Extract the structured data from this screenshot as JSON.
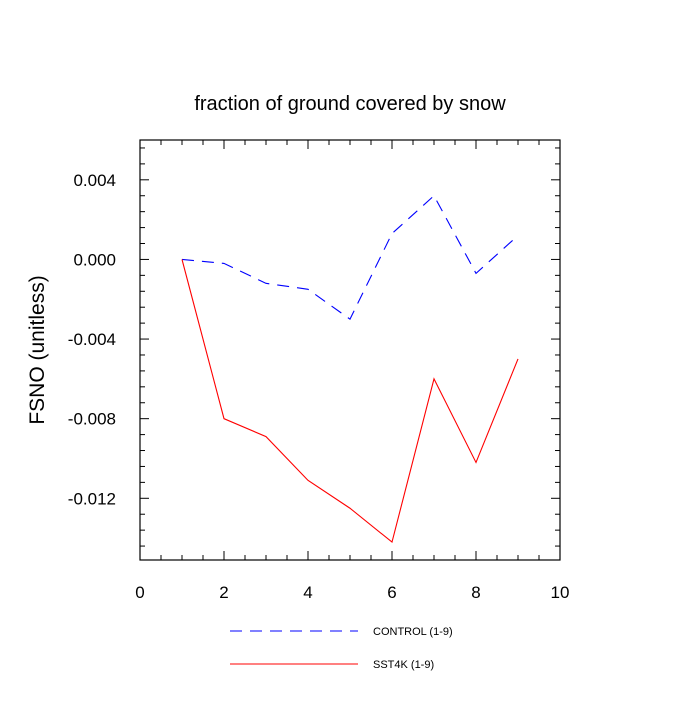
{
  "chart_data": {
    "type": "line",
    "title": "fraction of ground covered by snow",
    "xlabel": "",
    "ylabel": "FSNO  (unitless)",
    "xlim": [
      0,
      10
    ],
    "ylim": [
      -0.0151,
      0.006
    ],
    "x_ticks": [
      0,
      2,
      4,
      6,
      8,
      10
    ],
    "x_tick_labels": [
      "0",
      "2",
      "4",
      "6",
      "8",
      "10"
    ],
    "y_ticks": [
      0.004,
      0.0,
      -0.004,
      -0.008,
      -0.012
    ],
    "y_tick_labels": [
      "0.004",
      "0.000",
      "-0.004",
      "-0.008",
      "-0.012"
    ],
    "grid": false,
    "legend_position": "bottom",
    "x": [
      1,
      2,
      3,
      4,
      5,
      6,
      7,
      8,
      9
    ],
    "series": [
      {
        "name": "CONTROL (1-9)",
        "color": "#0000ff",
        "dash": "dashed",
        "values": [
          0.0,
          -0.0002,
          -0.0012,
          -0.0015,
          -0.003,
          0.0013,
          0.0032,
          -0.0007,
          0.0012
        ]
      },
      {
        "name": "SST4K (1-9)",
        "color": "#ff0000",
        "dash": "solid",
        "values": [
          0.0,
          -0.008,
          -0.0089,
          -0.0111,
          -0.0125,
          -0.0142,
          -0.006,
          -0.0102,
          -0.005
        ]
      }
    ]
  }
}
